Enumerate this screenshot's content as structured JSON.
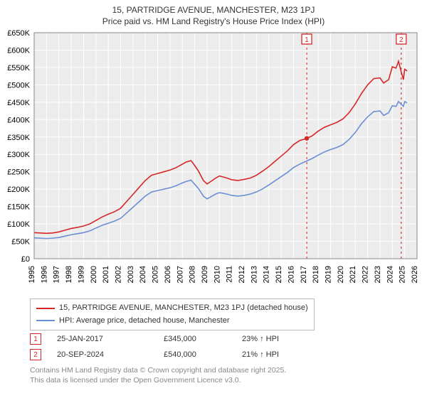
{
  "title_line1": "15, PARTRIDGE AVENUE, MANCHESTER, M23 1PJ",
  "title_line2": "Price paid vs. HM Land Registry's House Price Index (HPI)",
  "chart": {
    "type": "line",
    "background_color": "#ececec",
    "grid_color": "#ffffff",
    "border_color": "#888888",
    "x": {
      "ticks": [
        "1995",
        "1996",
        "1997",
        "1998",
        "1999",
        "2000",
        "2001",
        "2002",
        "2003",
        "2004",
        "2005",
        "2006",
        "2007",
        "2008",
        "2009",
        "2010",
        "2011",
        "2012",
        "2013",
        "2014",
        "2015",
        "2016",
        "2017",
        "2018",
        "2019",
        "2020",
        "2021",
        "2022",
        "2023",
        "2024",
        "2025",
        "2026"
      ],
      "label_fontsize": 11
    },
    "y": {
      "min": 0,
      "max": 650000,
      "step": 50000,
      "tick_labels": [
        "£0",
        "£50K",
        "£100K",
        "£150K",
        "£200K",
        "£250K",
        "£300K",
        "£350K",
        "£400K",
        "£450K",
        "£500K",
        "£550K",
        "£600K",
        "£650K"
      ],
      "label_fontsize": 11
    },
    "series": [
      {
        "name": "15, PARTRIDGE AVENUE, MANCHESTER, M23 1PJ (detached house)",
        "color": "#d62728",
        "line_width": 1.6,
        "points": [
          [
            1995.0,
            75000
          ],
          [
            1995.5,
            74000
          ],
          [
            1996.0,
            73000
          ],
          [
            1996.5,
            74000
          ],
          [
            1997.0,
            77000
          ],
          [
            1997.5,
            82000
          ],
          [
            1998.0,
            87000
          ],
          [
            1998.5,
            90000
          ],
          [
            1999.0,
            94000
          ],
          [
            1999.5,
            100000
          ],
          [
            2000.0,
            110000
          ],
          [
            2000.5,
            120000
          ],
          [
            2001.0,
            128000
          ],
          [
            2001.5,
            135000
          ],
          [
            2002.0,
            145000
          ],
          [
            2002.5,
            165000
          ],
          [
            2003.0,
            185000
          ],
          [
            2003.5,
            205000
          ],
          [
            2004.0,
            225000
          ],
          [
            2004.5,
            240000
          ],
          [
            2005.0,
            245000
          ],
          [
            2005.5,
            250000
          ],
          [
            2006.0,
            255000
          ],
          [
            2006.5,
            262000
          ],
          [
            2007.0,
            272000
          ],
          [
            2007.3,
            278000
          ],
          [
            2007.7,
            282000
          ],
          [
            2008.0,
            268000
          ],
          [
            2008.3,
            252000
          ],
          [
            2008.7,
            225000
          ],
          [
            2009.0,
            215000
          ],
          [
            2009.3,
            222000
          ],
          [
            2009.7,
            232000
          ],
          [
            2010.0,
            238000
          ],
          [
            2010.3,
            235000
          ],
          [
            2010.7,
            231000
          ],
          [
            2011.0,
            227000
          ],
          [
            2011.5,
            225000
          ],
          [
            2012.0,
            228000
          ],
          [
            2012.5,
            232000
          ],
          [
            2013.0,
            240000
          ],
          [
            2013.5,
            252000
          ],
          [
            2014.0,
            265000
          ],
          [
            2014.5,
            280000
          ],
          [
            2015.0,
            295000
          ],
          [
            2015.5,
            310000
          ],
          [
            2016.0,
            328000
          ],
          [
            2016.5,
            340000
          ],
          [
            2017.0,
            345000
          ],
          [
            2017.5,
            353000
          ],
          [
            2018.0,
            367000
          ],
          [
            2018.5,
            378000
          ],
          [
            2019.0,
            385000
          ],
          [
            2019.5,
            392000
          ],
          [
            2020.0,
            402000
          ],
          [
            2020.5,
            420000
          ],
          [
            2021.0,
            445000
          ],
          [
            2021.5,
            475000
          ],
          [
            2022.0,
            500000
          ],
          [
            2022.5,
            518000
          ],
          [
            2023.0,
            520000
          ],
          [
            2023.3,
            505000
          ],
          [
            2023.7,
            515000
          ],
          [
            2024.0,
            552000
          ],
          [
            2024.3,
            548000
          ],
          [
            2024.5,
            568000
          ],
          [
            2024.7,
            540000
          ],
          [
            2024.9,
            515000
          ],
          [
            2025.0,
            545000
          ],
          [
            2025.2,
            540000
          ]
        ]
      },
      {
        "name": "HPI: Average price, detached house, Manchester",
        "color": "#6a8fd4",
        "line_width": 1.6,
        "points": [
          [
            1995.0,
            60000
          ],
          [
            1995.5,
            59000
          ],
          [
            1996.0,
            58000
          ],
          [
            1996.5,
            59000
          ],
          [
            1997.0,
            61000
          ],
          [
            1997.5,
            65000
          ],
          [
            1998.0,
            69000
          ],
          [
            1998.5,
            72000
          ],
          [
            1999.0,
            75000
          ],
          [
            1999.5,
            80000
          ],
          [
            2000.0,
            88000
          ],
          [
            2000.5,
            96000
          ],
          [
            2001.0,
            102000
          ],
          [
            2001.5,
            108000
          ],
          [
            2002.0,
            116000
          ],
          [
            2002.5,
            132000
          ],
          [
            2003.0,
            148000
          ],
          [
            2003.5,
            164000
          ],
          [
            2004.0,
            180000
          ],
          [
            2004.5,
            192000
          ],
          [
            2005.0,
            196000
          ],
          [
            2005.5,
            200000
          ],
          [
            2006.0,
            204000
          ],
          [
            2006.5,
            210000
          ],
          [
            2007.0,
            218000
          ],
          [
            2007.3,
            222000
          ],
          [
            2007.7,
            226000
          ],
          [
            2008.0,
            214000
          ],
          [
            2008.3,
            202000
          ],
          [
            2008.7,
            180000
          ],
          [
            2009.0,
            172000
          ],
          [
            2009.3,
            178000
          ],
          [
            2009.7,
            186000
          ],
          [
            2010.0,
            190000
          ],
          [
            2010.3,
            188000
          ],
          [
            2010.7,
            185000
          ],
          [
            2011.0,
            182000
          ],
          [
            2011.5,
            180000
          ],
          [
            2012.0,
            182000
          ],
          [
            2012.5,
            186000
          ],
          [
            2013.0,
            192000
          ],
          [
            2013.5,
            201000
          ],
          [
            2014.0,
            212000
          ],
          [
            2014.5,
            224000
          ],
          [
            2015.0,
            236000
          ],
          [
            2015.5,
            248000
          ],
          [
            2016.0,
            262000
          ],
          [
            2016.5,
            272000
          ],
          [
            2017.0,
            280000
          ],
          [
            2017.5,
            288000
          ],
          [
            2018.0,
            298000
          ],
          [
            2018.5,
            307000
          ],
          [
            2019.0,
            314000
          ],
          [
            2019.5,
            320000
          ],
          [
            2020.0,
            328000
          ],
          [
            2020.5,
            343000
          ],
          [
            2021.0,
            363000
          ],
          [
            2021.5,
            388000
          ],
          [
            2022.0,
            408000
          ],
          [
            2022.5,
            423000
          ],
          [
            2023.0,
            425000
          ],
          [
            2023.3,
            412000
          ],
          [
            2023.7,
            420000
          ],
          [
            2024.0,
            440000
          ],
          [
            2024.3,
            438000
          ],
          [
            2024.5,
            452000
          ],
          [
            2024.7,
            445000
          ],
          [
            2024.9,
            438000
          ],
          [
            2025.0,
            452000
          ],
          [
            2025.2,
            448000
          ]
        ]
      }
    ],
    "markers": [
      {
        "n": "1",
        "x": 2017.07,
        "color": "#d62728"
      },
      {
        "n": "2",
        "x": 2024.72,
        "color": "#d62728"
      }
    ]
  },
  "legend": [
    {
      "color": "#d62728",
      "label": "15, PARTRIDGE AVENUE, MANCHESTER, M23 1PJ (detached house)"
    },
    {
      "color": "#6a8fd4",
      "label": "HPI: Average price, detached house, Manchester"
    }
  ],
  "transactions": [
    {
      "n": "1",
      "color": "#d62728",
      "date": "25-JAN-2017",
      "price": "£345,000",
      "delta": "23% ↑ HPI"
    },
    {
      "n": "2",
      "color": "#d62728",
      "date": "20-SEP-2024",
      "price": "£540,000",
      "delta": "21% ↑ HPI"
    }
  ],
  "copyright_line1": "Contains HM Land Registry data © Crown copyright and database right 2025.",
  "copyright_line2": "This data is licensed under the Open Government Licence v3.0."
}
